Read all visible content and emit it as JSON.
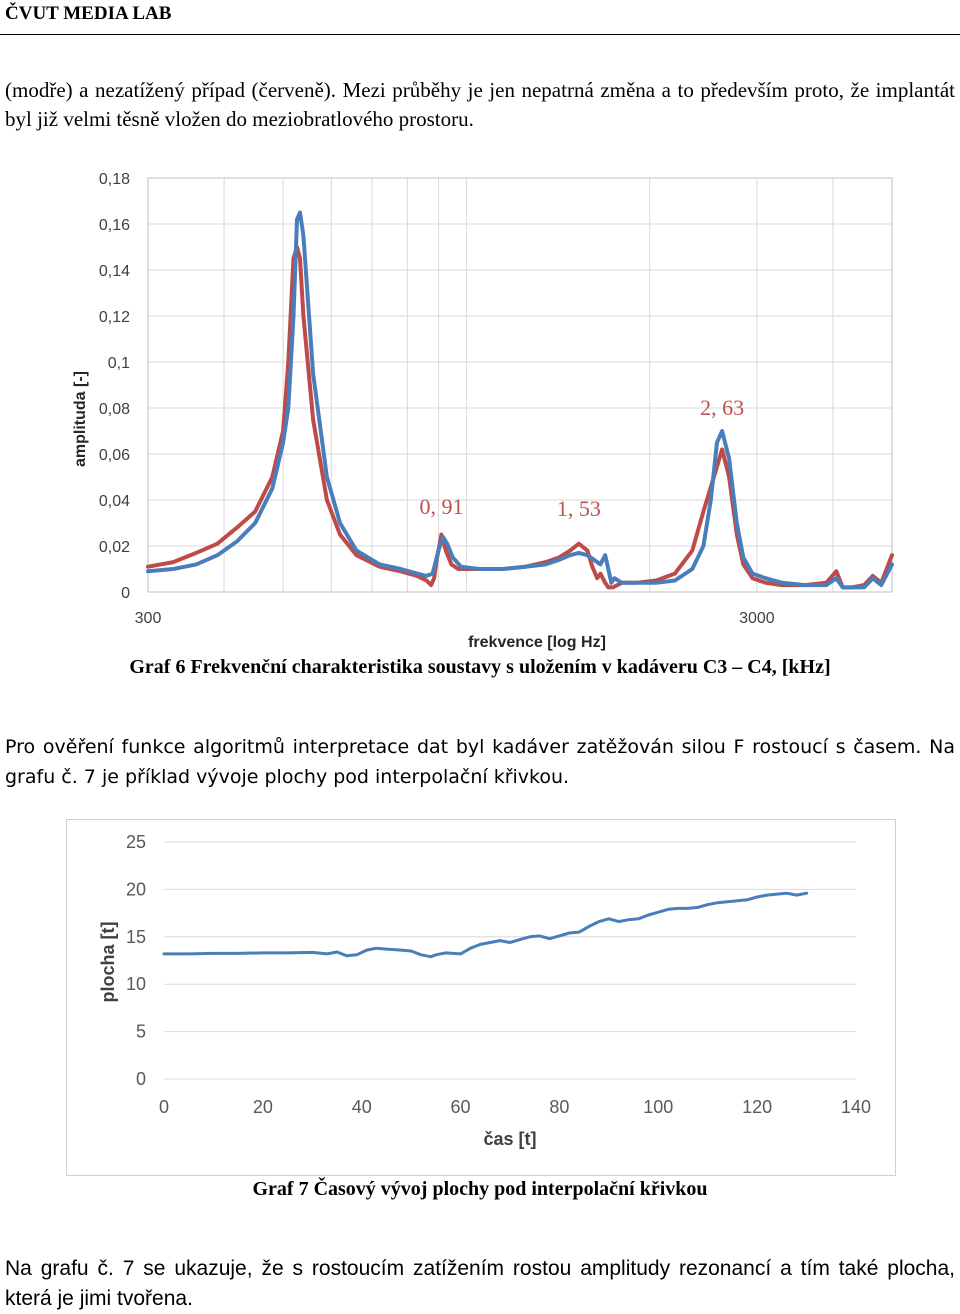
{
  "header": {
    "title": "ČVUT MEDIA LAB"
  },
  "paragraphs": {
    "intro": "(modře) a nezatížený případ (červeně). Mezi průběhy je jen nepatrná změna a to především proto, že implantát byl již velmi těsně vložen do meziobratlového prostoru.",
    "middle": "Pro ověření funkce algoritmů interpretace dat byl kadáver zatěžován silou F rostoucí s časem. Na grafu č. 7 je příklad vývoje plochy pod interpolační křivkou.",
    "outro": "Na grafu č. 7 se ukazuje, že s rostoucím zatížením rostou amplitudy rezonancí a tím také plocha, která je jimi tvořena."
  },
  "captions": {
    "graf6": "Graf 6 Frekvenční charakteristika soustavy s uložením v kadáveru C3 – C4, [kHz]",
    "graf7": "Graf 7 Časový vývoj plochy pod interpolační křivkou"
  },
  "colors": {
    "blue": "#4a7ebb",
    "red": "#be4b48",
    "grid": "#d9d9d9",
    "annotation": "#c0504d"
  },
  "chart_data": [
    {
      "type": "line",
      "xscale": "log",
      "xlabel": "frekvence [log Hz]",
      "ylabel": "amplituda [-]",
      "xlim": [
        300,
        5000
      ],
      "ylim": [
        0,
        0.18
      ],
      "xticks": [
        300,
        3000
      ],
      "xtick_labels": [
        "300",
        "3000"
      ],
      "yticks": [
        0,
        0.02,
        0.04,
        0.06,
        0.08,
        0.1,
        0.12,
        0.14,
        0.16,
        0.18
      ],
      "ytick_labels": [
        "0",
        "0,02",
        "0,04",
        "0,06",
        "0,08",
        "0,1",
        "0,12",
        "0,14",
        "0,16",
        "0,18"
      ],
      "grid": true,
      "annotations": [
        {
          "text": "0, 91",
          "x": 910,
          "y": 0.034
        },
        {
          "text": "1, 53",
          "x": 1530,
          "y": 0.033
        },
        {
          "text": "2, 63",
          "x": 2630,
          "y": 0.077
        }
      ],
      "series": [
        {
          "color": "blue",
          "x": [
            300,
            330,
            360,
            390,
            420,
            450,
            480,
            500,
            510,
            520,
            527,
            533,
            540,
            560,
            590,
            620,
            660,
            720,
            780,
            830,
            860,
            880,
            900,
            915,
            930,
            950,
            980,
            1050,
            1150,
            1250,
            1350,
            1420,
            1480,
            1530,
            1580,
            1620,
            1660,
            1690,
            1710,
            1730,
            1750,
            1800,
            1900,
            2050,
            2200,
            2350,
            2450,
            2520,
            2580,
            2630,
            2700,
            2780,
            2850,
            2950,
            3100,
            3300,
            3600,
            3900,
            4050,
            4150,
            4300,
            4500,
            4650,
            4800,
            5000
          ],
          "y": [
            0.009,
            0.01,
            0.012,
            0.016,
            0.022,
            0.03,
            0.045,
            0.065,
            0.08,
            0.12,
            0.162,
            0.165,
            0.155,
            0.095,
            0.05,
            0.03,
            0.018,
            0.012,
            0.01,
            0.008,
            0.007,
            0.008,
            0.018,
            0.024,
            0.021,
            0.015,
            0.011,
            0.01,
            0.01,
            0.011,
            0.012,
            0.014,
            0.016,
            0.017,
            0.016,
            0.014,
            0.012,
            0.016,
            0.01,
            0.004,
            0.006,
            0.004,
            0.004,
            0.004,
            0.005,
            0.01,
            0.02,
            0.04,
            0.065,
            0.07,
            0.058,
            0.03,
            0.015,
            0.008,
            0.006,
            0.004,
            0.003,
            0.003,
            0.006,
            0.002,
            0.002,
            0.002,
            0.006,
            0.003,
            0.012
          ]
        },
        {
          "color": "red",
          "x": [
            300,
            330,
            360,
            390,
            420,
            450,
            480,
            500,
            510,
            520,
            527,
            533,
            540,
            560,
            590,
            620,
            660,
            720,
            780,
            830,
            860,
            875,
            885,
            895,
            910,
            925,
            945,
            970,
            1050,
            1150,
            1250,
            1350,
            1420,
            1480,
            1530,
            1580,
            1610,
            1640,
            1660,
            1690,
            1710,
            1740,
            1800,
            1900,
            2050,
            2200,
            2350,
            2450,
            2550,
            2630,
            2700,
            2780,
            2850,
            2950,
            3100,
            3300,
            3600,
            3900,
            4050,
            4150,
            4300,
            4500,
            4650,
            4800,
            5000
          ],
          "y": [
            0.011,
            0.013,
            0.017,
            0.021,
            0.028,
            0.035,
            0.05,
            0.07,
            0.1,
            0.145,
            0.15,
            0.145,
            0.12,
            0.075,
            0.04,
            0.025,
            0.016,
            0.011,
            0.009,
            0.007,
            0.005,
            0.003,
            0.006,
            0.015,
            0.025,
            0.018,
            0.012,
            0.01,
            0.01,
            0.01,
            0.011,
            0.013,
            0.015,
            0.018,
            0.021,
            0.018,
            0.011,
            0.006,
            0.008,
            0.004,
            0.002,
            0.002,
            0.004,
            0.004,
            0.005,
            0.008,
            0.018,
            0.035,
            0.05,
            0.062,
            0.05,
            0.025,
            0.012,
            0.006,
            0.004,
            0.003,
            0.003,
            0.004,
            0.009,
            0.002,
            0.002,
            0.003,
            0.007,
            0.004,
            0.016
          ]
        }
      ]
    },
    {
      "type": "line",
      "xlabel": "čas [t]",
      "ylabel": "plocha [t]",
      "xlim": [
        0,
        140
      ],
      "ylim": [
        0,
        25
      ],
      "xticks": [
        0,
        20,
        40,
        60,
        80,
        100,
        120,
        140
      ],
      "yticks": [
        0,
        5,
        10,
        15,
        20,
        25
      ],
      "grid": true,
      "series": [
        {
          "color": "blue",
          "x": [
            0,
            5,
            10,
            15,
            20,
            25,
            30,
            33,
            35,
            37,
            39,
            41,
            43,
            45,
            48,
            50,
            52,
            54,
            55,
            57,
            60,
            62,
            64,
            66,
            68,
            70,
            72,
            74,
            76,
            78,
            80,
            82,
            84,
            86,
            88,
            90,
            92,
            94,
            96,
            98,
            100,
            102,
            104,
            106,
            108,
            110,
            112,
            114,
            116,
            118,
            120,
            122,
            124,
            126,
            128,
            130
          ],
          "y": [
            13.2,
            13.2,
            13.25,
            13.25,
            13.3,
            13.3,
            13.35,
            13.2,
            13.4,
            13.0,
            13.1,
            13.6,
            13.8,
            13.7,
            13.6,
            13.5,
            13.1,
            12.9,
            13.1,
            13.3,
            13.2,
            13.8,
            14.2,
            14.4,
            14.6,
            14.4,
            14.7,
            15.0,
            15.1,
            14.8,
            15.1,
            15.4,
            15.5,
            16.1,
            16.6,
            16.9,
            16.6,
            16.8,
            16.9,
            17.3,
            17.6,
            17.9,
            18.0,
            18.0,
            18.1,
            18.4,
            18.6,
            18.7,
            18.8,
            18.9,
            19.2,
            19.4,
            19.5,
            19.6,
            19.4,
            19.6
          ]
        }
      ]
    }
  ]
}
